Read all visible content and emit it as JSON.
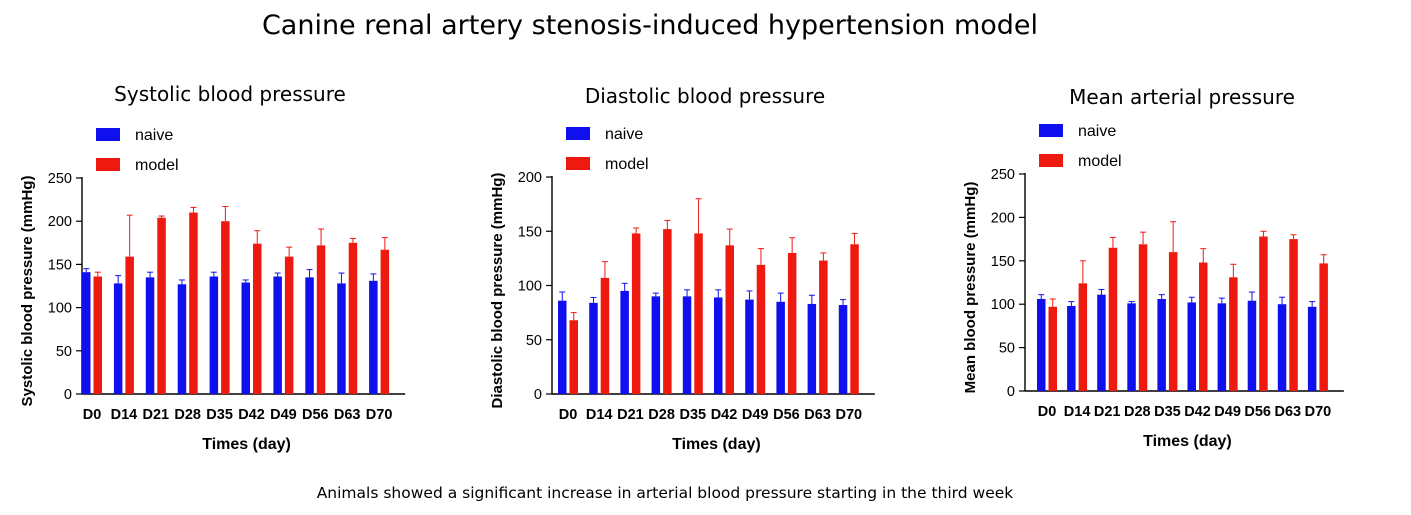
{
  "page": {
    "title": "Canine renal artery stenosis-induced hypertension model",
    "caption": "Animals showed a significant increase in arterial blood pressure starting in the third week"
  },
  "colors": {
    "naive": "#1010ee",
    "model": "#ee1a10"
  },
  "chart_data": [
    {
      "type": "bar",
      "title": "Systolic blood pressure",
      "xlabel": "Times (day)",
      "ylabel": "Systolic blood pressure (mmHg)",
      "ylim": [
        0,
        250
      ],
      "yticks": [
        0,
        50,
        100,
        150,
        200,
        250
      ],
      "categories": [
        "D0",
        "D14",
        "D21",
        "D28",
        "D35",
        "D42",
        "D49",
        "D56",
        "D63",
        "D70"
      ],
      "legend_position": "top-left",
      "series": [
        {
          "name": "naive",
          "values": [
            141,
            128,
            135,
            127,
            136,
            129,
            136,
            135,
            128,
            131
          ],
          "errors": [
            4,
            9,
            6,
            5,
            5,
            3,
            4,
            9,
            12,
            8
          ]
        },
        {
          "name": "model",
          "values": [
            136,
            159,
            204,
            210,
            200,
            174,
            159,
            172,
            175,
            167
          ],
          "errors": [
            5,
            48,
            2,
            6,
            17,
            15,
            11,
            19,
            5,
            14
          ]
        }
      ]
    },
    {
      "type": "bar",
      "title": "Diastolic blood pressure",
      "xlabel": "Times (day)",
      "ylabel": "Diastolic blood pressure (mmHg)",
      "ylim": [
        0,
        200
      ],
      "yticks": [
        0,
        50,
        100,
        150,
        200
      ],
      "categories": [
        "D0",
        "D14",
        "D21",
        "D28",
        "D35",
        "D42",
        "D49",
        "D56",
        "D63",
        "D70"
      ],
      "legend_position": "top-left",
      "series": [
        {
          "name": "naive",
          "values": [
            86,
            84,
            95,
            90,
            90,
            89,
            87,
            85,
            83,
            82
          ],
          "errors": [
            8,
            5,
            7,
            3,
            6,
            7,
            8,
            8,
            8,
            5
          ]
        },
        {
          "name": "model",
          "values": [
            68,
            107,
            148,
            152,
            148,
            137,
            119,
            130,
            123,
            138
          ],
          "errors": [
            7,
            15,
            5,
            8,
            32,
            15,
            15,
            14,
            7,
            10
          ]
        }
      ]
    },
    {
      "type": "bar",
      "title": "Mean arterial pressure",
      "xlabel": "Times (day)",
      "ylabel": "Mean blood pressure (mmHg)",
      "ylim": [
        0,
        250
      ],
      "yticks": [
        0,
        50,
        100,
        150,
        200,
        250
      ],
      "categories": [
        "D0",
        "D14",
        "D21",
        "D28",
        "D35",
        "D42",
        "D49",
        "D56",
        "D63",
        "D70"
      ],
      "legend_position": "top-left",
      "series": [
        {
          "name": "naive",
          "values": [
            106,
            98,
            111,
            101,
            106,
            102,
            101,
            104,
            100,
            97
          ],
          "errors": [
            5,
            5,
            6,
            2,
            5,
            6,
            6,
            10,
            8,
            6
          ]
        },
        {
          "name": "model",
          "values": [
            97,
            124,
            165,
            169,
            160,
            148,
            131,
            178,
            175,
            147
          ],
          "errors": [
            9,
            26,
            12,
            14,
            35,
            16,
            15,
            6,
            5,
            10
          ]
        }
      ]
    }
  ]
}
